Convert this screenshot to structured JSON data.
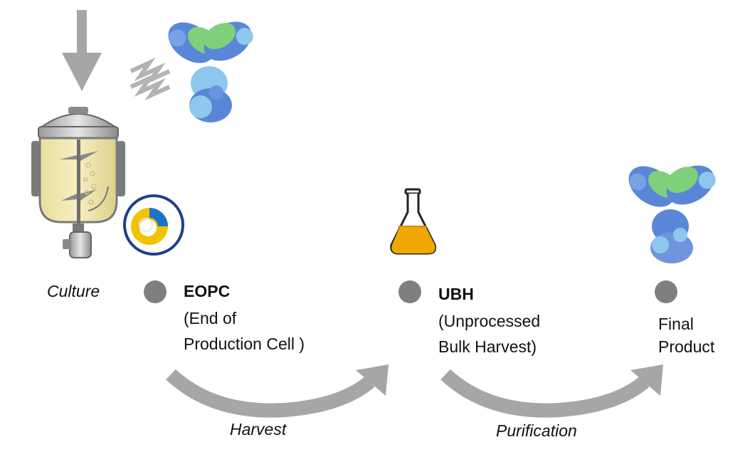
{
  "diagram": {
    "stages": [
      {
        "label": "Culture"
      },
      {
        "code": "EOPC",
        "lines": [
          "(End of",
          "Production Cell )"
        ]
      },
      {
        "code": "UBH",
        "lines": [
          "(Unprocessed",
          "Bulk Harvest)"
        ]
      },
      {
        "lines": [
          "Final",
          "Product"
        ]
      }
    ],
    "transitions": [
      {
        "label": "Harvest"
      },
      {
        "label": "Purification"
      }
    ],
    "icons": [
      "down-arrow-icon",
      "antibody-icon",
      "bioreactor-icon",
      "cell-icon",
      "flask-icon",
      "antibody-icon"
    ],
    "colors": {
      "arrow": "#a6a6a6",
      "dot": "#7f7f7f",
      "antibody_green": "#7fd07a",
      "antibody_blue": "#5a86d8",
      "antibody_light": "#8ec7ee",
      "cell_ring": "#1f3f8a",
      "cell_yellow": "#f2c200",
      "flask_liquid": "#f0a800"
    }
  }
}
